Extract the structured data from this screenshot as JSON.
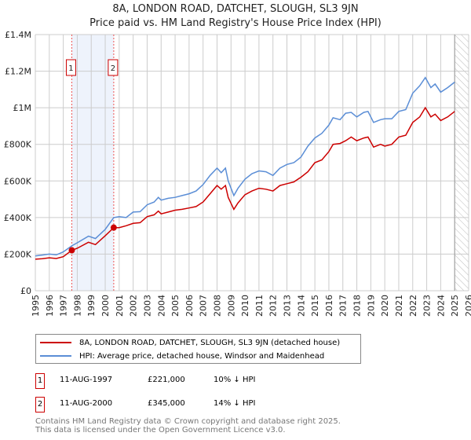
{
  "chart_data": {
    "type": "line",
    "title": "8A, LONDON ROAD, DATCHET, SLOUGH, SL3 9JN",
    "subtitle": "Price paid vs. HM Land Registry's House Price Index (HPI)",
    "xlim": [
      1995,
      2026
    ],
    "ylim": [
      0,
      1400000
    ],
    "yticks": [
      {
        "v": 0,
        "label": "£0"
      },
      {
        "v": 200000,
        "label": "£200K"
      },
      {
        "v": 400000,
        "label": "£400K"
      },
      {
        "v": 600000,
        "label": "£600K"
      },
      {
        "v": 800000,
        "label": "£800K"
      },
      {
        "v": 1000000,
        "label": "£1M"
      },
      {
        "v": 1200000,
        "label": "£1.2M"
      },
      {
        "v": 1400000,
        "label": "£1.4M"
      }
    ],
    "xticks": [
      "1995",
      "1996",
      "1997",
      "1998",
      "1999",
      "2000",
      "2001",
      "2002",
      "2003",
      "2004",
      "2005",
      "2006",
      "2007",
      "2008",
      "2009",
      "2010",
      "2011",
      "2012",
      "2013",
      "2014",
      "2015",
      "2016",
      "2017",
      "2018",
      "2019",
      "2020",
      "2021",
      "2022",
      "2023",
      "2024",
      "2025",
      "2026"
    ],
    "grid": true,
    "forecast_hatch_from": 2025,
    "series": [
      {
        "name": "8A, LONDON ROAD, DATCHET, SLOUGH, SL3 9JN (detached house)",
        "color": "#cc0000",
        "x": [
          1995,
          1995.5,
          1996,
          1996.5,
          1997,
          1997.61,
          1998,
          1998.8,
          1999.3,
          2000,
          2000.61,
          2001,
          2001.5,
          2002,
          2002.5,
          2003,
          2003.5,
          2003.8,
          2004,
          2004.5,
          2005,
          2005.5,
          2006,
          2006.5,
          2007,
          2007.5,
          2008,
          2008.3,
          2008.6,
          2008.8,
          2009.2,
          2009.5,
          2010,
          2010.5,
          2011,
          2011.5,
          2012,
          2012.5,
          2013,
          2013.5,
          2014,
          2014.5,
          2015,
          2015.5,
          2016,
          2016.3,
          2016.8,
          2017.2,
          2017.6,
          2018,
          2018.5,
          2018.8,
          2019.2,
          2019.7,
          2020,
          2020.5,
          2021,
          2021.5,
          2022,
          2022.5,
          2022.9,
          2023.3,
          2023.6,
          2024,
          2024.5,
          2025
        ],
        "y": [
          172000,
          175000,
          180000,
          176000,
          186000,
          221000,
          232000,
          265000,
          252000,
          300000,
          345000,
          345000,
          355000,
          368000,
          372000,
          405000,
          415000,
          435000,
          420000,
          430000,
          440000,
          445000,
          452000,
          460000,
          485000,
          530000,
          575000,
          555000,
          575000,
          510000,
          445000,
          480000,
          525000,
          545000,
          560000,
          555000,
          545000,
          575000,
          585000,
          595000,
          620000,
          650000,
          700000,
          715000,
          760000,
          800000,
          805000,
          820000,
          840000,
          820000,
          835000,
          840000,
          785000,
          800000,
          790000,
          800000,
          840000,
          850000,
          920000,
          950000,
          1000000,
          950000,
          965000,
          930000,
          950000,
          980000
        ]
      },
      {
        "name": "HPI: Average price, detached house, Windsor and Maidenhead",
        "color": "#5b8ed6",
        "x": [
          1995,
          1995.5,
          1996,
          1996.5,
          1997,
          1997.61,
          1998,
          1998.8,
          1999.3,
          2000,
          2000.61,
          2001,
          2001.5,
          2002,
          2002.5,
          2003,
          2003.5,
          2003.8,
          2004,
          2004.5,
          2005,
          2005.5,
          2006,
          2006.5,
          2007,
          2007.5,
          2008,
          2008.3,
          2008.6,
          2008.8,
          2009.2,
          2009.5,
          2010,
          2010.5,
          2011,
          2011.5,
          2012,
          2012.5,
          2013,
          2013.5,
          2014,
          2014.5,
          2015,
          2015.5,
          2016,
          2016.3,
          2016.8,
          2017.2,
          2017.6,
          2018,
          2018.5,
          2018.8,
          2019.2,
          2019.7,
          2020,
          2020.5,
          2021,
          2021.5,
          2022,
          2022.5,
          2022.9,
          2023.3,
          2023.6,
          2024,
          2024.5,
          2025
        ],
        "y": [
          190000,
          195000,
          200000,
          196000,
          212000,
          245000,
          262000,
          298000,
          285000,
          335000,
          400000,
          405000,
          400000,
          430000,
          432000,
          470000,
          485000,
          510000,
          495000,
          505000,
          510000,
          520000,
          530000,
          545000,
          580000,
          630000,
          670000,
          645000,
          670000,
          600000,
          520000,
          560000,
          610000,
          640000,
          655000,
          650000,
          630000,
          670000,
          690000,
          700000,
          730000,
          790000,
          835000,
          860000,
          905000,
          945000,
          935000,
          970000,
          975000,
          950000,
          975000,
          980000,
          920000,
          935000,
          940000,
          940000,
          980000,
          990000,
          1080000,
          1120000,
          1165000,
          1110000,
          1130000,
          1085000,
          1110000,
          1140000
        ]
      }
    ],
    "annotations": [
      {
        "label": "1",
        "x": 1997.61,
        "y": 221000
      },
      {
        "label": "2",
        "x": 2000.61,
        "y": 345000
      }
    ],
    "shaded_range": [
      1997.61,
      2000.61
    ],
    "legend": "below"
  },
  "transactions": [
    {
      "num": "1",
      "date": "11-AUG-1997",
      "price": "£221,000",
      "delta": "10% ↓ HPI"
    },
    {
      "num": "2",
      "date": "11-AUG-2000",
      "price": "£345,000",
      "delta": "14% ↓ HPI"
    }
  ],
  "footer": {
    "line1": "Contains HM Land Registry data © Crown copyright and database right 2025.",
    "line2": "This data is licensed under the Open Government Licence v3.0."
  }
}
